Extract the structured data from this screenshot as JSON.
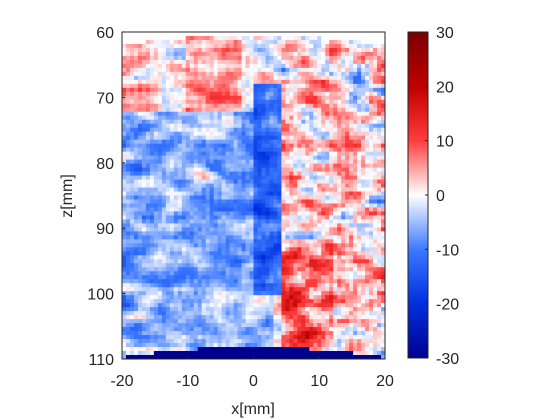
{
  "chart_data": {
    "type": "heatmap",
    "title": "",
    "xlabel": "x[mm]",
    "ylabel": "z[mm]",
    "xlim": [
      -20,
      20
    ],
    "ylim": [
      60,
      110
    ],
    "y_reversed": true,
    "x_ticks": [
      "-20",
      "-10",
      "0",
      "10",
      "20"
    ],
    "y_ticks": [
      "60",
      "70",
      "80",
      "90",
      "100",
      "110"
    ],
    "colorbar": {
      "colormap": "blue-white-red",
      "clim": [
        -30,
        30
      ],
      "ticks": [
        "30",
        "20",
        "10",
        "0",
        "-10",
        "-20",
        "-30"
      ]
    },
    "regions": [
      {
        "x_range": [
          -20,
          -14
        ],
        "z_range": [
          60,
          72
        ],
        "mean_value": 4,
        "texture": "speckle"
      },
      {
        "x_range": [
          -10,
          -2
        ],
        "z_range": [
          60,
          75
        ],
        "mean_value": 5,
        "texture": "smooth"
      },
      {
        "x_range": [
          -20,
          3
        ],
        "z_range": [
          72,
          108
        ],
        "mean_value": -6,
        "texture": "streaks"
      },
      {
        "x_range": [
          0,
          4
        ],
        "z_range": [
          68,
          100
        ],
        "mean_value": -13,
        "texture": "band"
      },
      {
        "x_range": [
          4,
          20
        ],
        "z_range": [
          62,
          108
        ],
        "mean_value": 2,
        "texture": "speckle"
      },
      {
        "x_range": [
          4,
          12
        ],
        "z_range": [
          92,
          108
        ],
        "mean_value": 8,
        "texture": "speckle"
      }
    ],
    "outside_fov_value": -30
  },
  "colors": {
    "colormap_low": "#00008f",
    "colormap_mid": "#ffffff",
    "colormap_high": "#800000",
    "axis": "#262626"
  }
}
